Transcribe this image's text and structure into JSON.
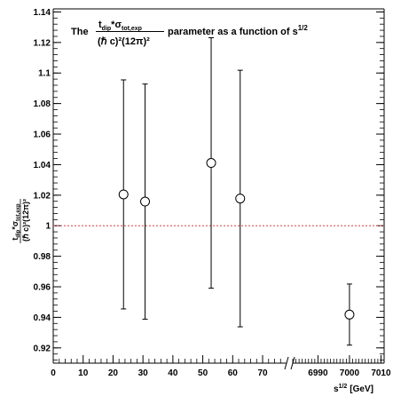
{
  "chart_data": {
    "type": "scatter",
    "title": {
      "prefix": "The",
      "numerator": "t",
      "numerator_sub": "dip",
      "numerator_mid": "*σ",
      "numerator_sub2": "tot,exp",
      "denominator": "(ℏ c)²(12π)²",
      "suffix": "parameter as a function of s",
      "suffix_sup": "1/2"
    },
    "xlabel": {
      "base": "s",
      "sup": "1/2",
      "unit": "[GeV]"
    },
    "ylabel": {
      "numerator": "t",
      "numerator_sub": "dip",
      "numerator_mid": "*σ",
      "numerator_sub2": "tot,exp",
      "denominator": "(ℏ c)²(12π)²"
    },
    "ylim": [
      0.91,
      1.142
    ],
    "y_ticks": [
      "0.92",
      "0.94",
      "0.96",
      "0.98",
      "1",
      "1.02",
      "1.04",
      "1.06",
      "1.08",
      "1.1",
      "1.12",
      "1.14"
    ],
    "x_axis_segments": [
      {
        "range": [
          0,
          78
        ],
        "ticks": [
          "0",
          "10",
          "20",
          "30",
          "40",
          "50",
          "60",
          "70"
        ]
      },
      {
        "range": [
          6982,
          7011
        ],
        "ticks": [
          "6990",
          "7000",
          "7010"
        ]
      }
    ],
    "series": [
      {
        "points": [
          {
            "x": 23.5,
            "y": 1.0205,
            "err": 0.075
          },
          {
            "x": 30.7,
            "y": 1.0158,
            "err": 0.077
          },
          {
            "x": 52.8,
            "y": 1.0411,
            "err": 0.082
          },
          {
            "x": 62.5,
            "y": 1.0178,
            "err": 0.084
          },
          {
            "x": 7000,
            "y": 0.9418,
            "err": 0.02
          }
        ]
      }
    ],
    "reference_line": {
      "y": 1.0,
      "color": "#e06666",
      "style": "dotted"
    }
  }
}
